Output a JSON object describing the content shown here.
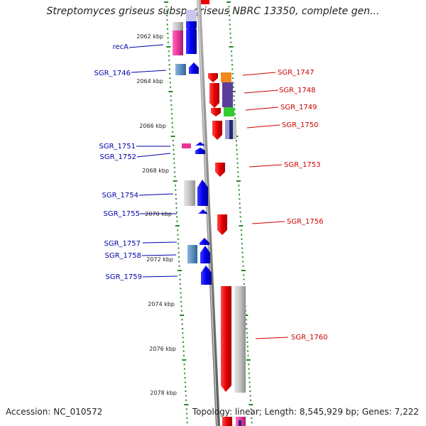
{
  "title": "Streptomyces griseus subsp. griseus NBRC 13350, complete gen...",
  "footer": {
    "accession": "Accession: NC_010572",
    "summary": "Topology: linear; Length: 8,545,929 bp; Genes: 7,222"
  },
  "scale_labels": [
    "2062 kbp",
    "2064 kbp",
    "2066 kbp",
    "2068 kbp",
    "2070 kbp",
    "2072 kbp",
    "2074 kbp",
    "2076 kbp",
    "2078 kbp"
  ],
  "genes_left": [
    "recA",
    "SGR_1746",
    "SGR_1751",
    "SGR_1752",
    "SGR_1754",
    "SGR_1755",
    "SGR_1757",
    "SGR_1758",
    "SGR_1759"
  ],
  "genes_right": [
    "SGR_1747",
    "SGR_1748",
    "SGR_1749",
    "SGR_1750",
    "SGR_1753",
    "SGR_1756",
    "SGR_1760"
  ],
  "colors": {
    "minus_strand": "#0000ee",
    "plus_strand": "#ee0000",
    "left_label": "#0000aa",
    "right_label": "#cc0000",
    "tick": "#228822",
    "backbone": "#8a8a8a",
    "cog_grey": "#bdbdbd",
    "cog_pink": "#e8379a",
    "cog_steelblue": "#5a8fc0",
    "cog_orange": "#f08a1c",
    "cog_purple": "#5a3f9a",
    "cog_green": "#33cc33",
    "cog_navy": "#202a80"
  }
}
